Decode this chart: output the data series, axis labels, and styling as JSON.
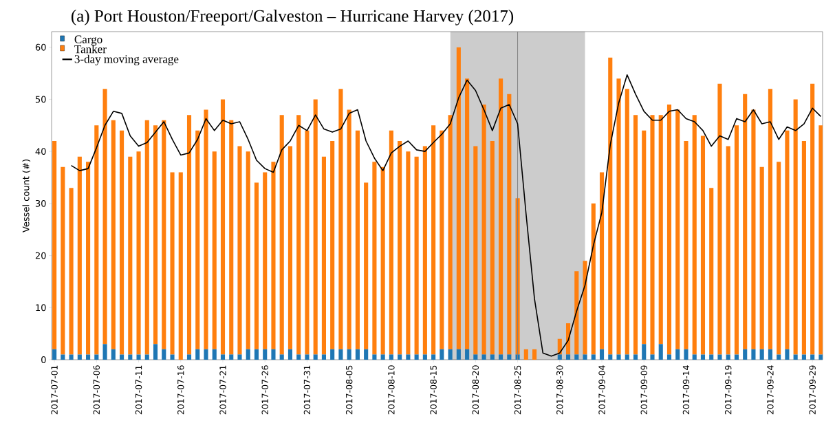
{
  "chart_data": {
    "type": "bar",
    "title": "(a)  Port Houston/Freeport/Galveston – Hurricane Harvey (2017)",
    "ylabel": "Vessel count (#)",
    "stacked": true,
    "legend": "top left",
    "x": [
      "2017-07-01",
      "2017-07-02",
      "2017-07-03",
      "2017-07-04",
      "2017-07-05",
      "2017-07-06",
      "2017-07-07",
      "2017-07-08",
      "2017-07-09",
      "2017-07-10",
      "2017-07-11",
      "2017-07-12",
      "2017-07-13",
      "2017-07-14",
      "2017-07-15",
      "2017-07-16",
      "2017-07-17",
      "2017-07-18",
      "2017-07-19",
      "2017-07-20",
      "2017-07-21",
      "2017-07-22",
      "2017-07-23",
      "2017-07-24",
      "2017-07-25",
      "2017-07-26",
      "2017-07-27",
      "2017-07-28",
      "2017-07-29",
      "2017-07-30",
      "2017-07-31",
      "2017-08-01",
      "2017-08-02",
      "2017-08-03",
      "2017-08-04",
      "2017-08-05",
      "2017-08-06",
      "2017-08-07",
      "2017-08-08",
      "2017-08-09",
      "2017-08-10",
      "2017-08-11",
      "2017-08-12",
      "2017-08-13",
      "2017-08-14",
      "2017-08-15",
      "2017-08-16",
      "2017-08-17",
      "2017-08-18",
      "2017-08-19",
      "2017-08-20",
      "2017-08-21",
      "2017-08-22",
      "2017-08-23",
      "2017-08-24",
      "2017-08-25",
      "2017-08-26",
      "2017-08-27",
      "2017-08-28",
      "2017-08-29",
      "2017-08-30",
      "2017-08-31",
      "2017-09-01",
      "2017-09-02",
      "2017-09-03",
      "2017-09-04",
      "2017-09-05",
      "2017-09-06",
      "2017-09-07",
      "2017-09-08",
      "2017-09-09",
      "2017-09-10",
      "2017-09-11",
      "2017-09-12",
      "2017-09-13",
      "2017-09-14",
      "2017-09-15",
      "2017-09-16",
      "2017-09-17",
      "2017-09-18",
      "2017-09-19",
      "2017-09-20",
      "2017-09-21",
      "2017-09-22",
      "2017-09-23",
      "2017-09-24",
      "2017-09-25",
      "2017-09-26",
      "2017-09-27",
      "2017-09-28",
      "2017-09-29",
      "2017-09-30"
    ],
    "series": [
      {
        "name": "Cargo",
        "color": "#1f77b4",
        "values": [
          2,
          1,
          1,
          1,
          1,
          1,
          3,
          2,
          1,
          1,
          1,
          1,
          3,
          2,
          1,
          0,
          1,
          2,
          2,
          2,
          1,
          1,
          1,
          2,
          2,
          2,
          2,
          1,
          2,
          1,
          1,
          1,
          1,
          2,
          2,
          2,
          2,
          2,
          1,
          1,
          1,
          1,
          1,
          1,
          1,
          1,
          2,
          2,
          2,
          2,
          1,
          1,
          1,
          1,
          1,
          1,
          0,
          0,
          0,
          0,
          1,
          1,
          1,
          1,
          1,
          2,
          1,
          1,
          1,
          1,
          3,
          1,
          3,
          1,
          2,
          2,
          1,
          1,
          1,
          1,
          1,
          1,
          2,
          2,
          2,
          2,
          1,
          2,
          1,
          1,
          1,
          1
        ]
      },
      {
        "name": "Tanker",
        "color": "#ff7f0e",
        "values": [
          40,
          36,
          32,
          38,
          37,
          44,
          49,
          44,
          43,
          38,
          39,
          45,
          42,
          44,
          35,
          36,
          46,
          42,
          46,
          38,
          49,
          45,
          40,
          38,
          32,
          34,
          36,
          46,
          39,
          46,
          43,
          49,
          38,
          40,
          50,
          46,
          42,
          32,
          37,
          36,
          43,
          41,
          39,
          38,
          40,
          44,
          42,
          45,
          58,
          52,
          40,
          48,
          41,
          53,
          50,
          30,
          2,
          2,
          0,
          0,
          3,
          6,
          16,
          18,
          29,
          34,
          57,
          53,
          51,
          46,
          41,
          46,
          44,
          48,
          46,
          40,
          46,
          42,
          32,
          52,
          40,
          44,
          49,
          46,
          35,
          50,
          37,
          42,
          49,
          41,
          52,
          44
        ]
      },
      {
        "name": "3-day moving average",
        "type": "line",
        "color": "#000000",
        "values": [
          null,
          null,
          37.3,
          36.3,
          36.7,
          40.7,
          45,
          47.7,
          47.3,
          43,
          41,
          41.7,
          43.7,
          45.7,
          42.3,
          39.3,
          39.7,
          42.3,
          46.3,
          44,
          46,
          45.3,
          45.7,
          42.3,
          38.3,
          36.7,
          36,
          40.3,
          42,
          45,
          44,
          47,
          44.3,
          43.7,
          44.3,
          47.3,
          48,
          42,
          38.7,
          36.3,
          39.7,
          41,
          42,
          40.3,
          40,
          41.7,
          43.3,
          45.3,
          50.3,
          53.7,
          51.7,
          48,
          44,
          48.3,
          49,
          45.3,
          28,
          11.7,
          1.3,
          0.7,
          1.3,
          3.7,
          9.3,
          14.3,
          22,
          28.3,
          41.3,
          49.3,
          54.7,
          51,
          47.7,
          46,
          46,
          47.7,
          48,
          46.3,
          45.7,
          44,
          41,
          43,
          42.3,
          46.3,
          45.7,
          48,
          45.3,
          45.7,
          42.3,
          44.7,
          44,
          45.3,
          48.3,
          46.7
        ]
      }
    ],
    "xlim": [
      "2017-06-30T16:00",
      "2017-09-30T05:00"
    ],
    "xticks": [
      "2017-07-01",
      "2017-07-06",
      "2017-07-11",
      "2017-07-16",
      "2017-07-21",
      "2017-07-26",
      "2017-07-31",
      "2017-08-05",
      "2017-08-10",
      "2017-08-15",
      "2017-08-20",
      "2017-08-25",
      "2017-08-30",
      "2017-09-04",
      "2017-09-09",
      "2017-09-14",
      "2017-09-19",
      "2017-09-24",
      "2017-09-29"
    ],
    "ylim": [
      0,
      63
    ],
    "yticks": [
      0,
      10,
      20,
      30,
      40,
      50,
      60
    ],
    "bands": [
      {
        "axis": "x",
        "from": "2017-08-17",
        "to": "2017-09-02",
        "color": "#cccccc"
      }
    ],
    "ref_lines": [
      {
        "axis": "x",
        "value": "2017-08-25",
        "color": "#808080"
      }
    ]
  }
}
